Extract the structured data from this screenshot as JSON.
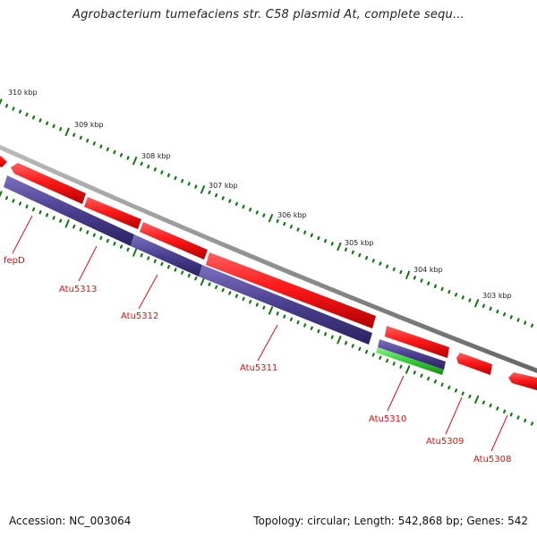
{
  "map": {
    "title": "Agrobacterium tumefaciens str. C58 plasmid At, complete sequ...",
    "accession": "Accession: NC_003064",
    "summary": "Topology: circular; Length: 542,868 bp; Genes: 542"
  },
  "scale_ticks": [
    "310 kbp",
    "309 kbp",
    "308 kbp",
    "307 kbp",
    "306 kbp",
    "305 kbp",
    "304 kbp",
    "303 kbp"
  ],
  "genes": [
    {
      "name": "fepD",
      "label": "fepD"
    },
    {
      "name": "Atu5313",
      "label": "Atu5313"
    },
    {
      "name": "Atu5312",
      "label": "Atu5312"
    },
    {
      "name": "Atu5311",
      "label": "Atu5311"
    },
    {
      "name": "Atu5310",
      "label": "Atu5310"
    },
    {
      "name": "Atu5309",
      "label": "Atu5309"
    },
    {
      "name": "Atu5308",
      "label": "Atu5308"
    }
  ],
  "colors": {
    "cds_forward": "#ff1a1a",
    "cds_reverse": "#4b3f8f",
    "rna": "#33cc33",
    "backbone": "#888888",
    "ticks": "#117711",
    "gene_label": "#dd1111"
  }
}
